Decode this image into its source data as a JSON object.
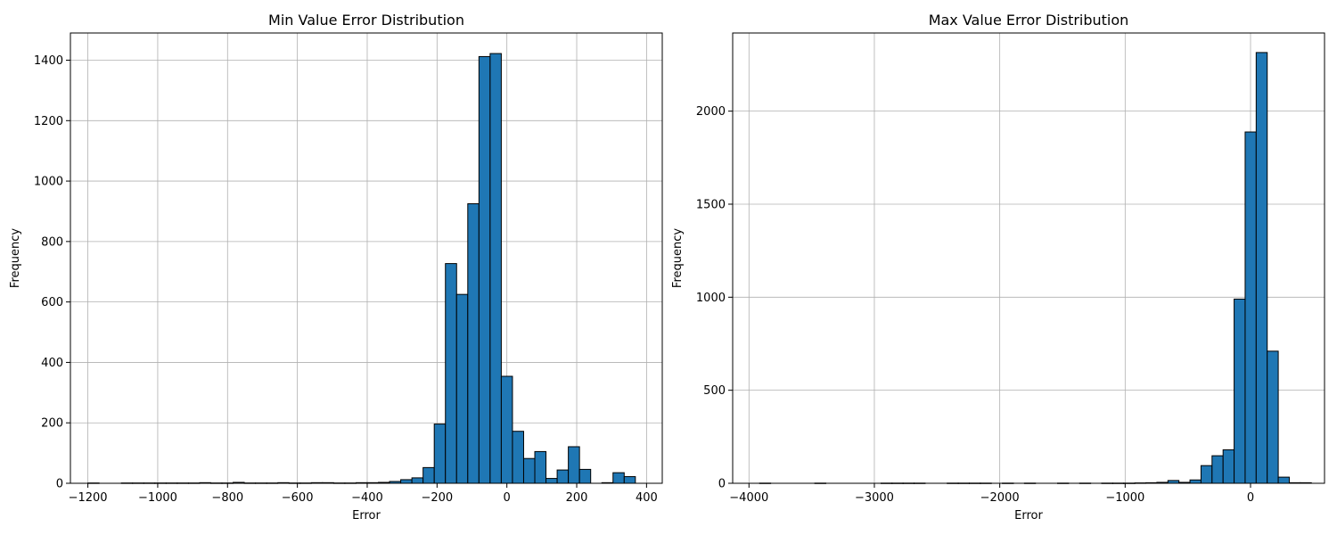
{
  "chart_data": [
    {
      "type": "bar",
      "title": "Min Value Error Distribution",
      "xlabel": "Error",
      "ylabel": "Frequency",
      "xlim": [
        -1250,
        445
      ],
      "ylim": [
        0,
        1490
      ],
      "xticks": [
        -1200,
        -1000,
        -800,
        -600,
        -400,
        -200,
        0,
        200,
        400
      ],
      "xtick_labels": [
        "−1200",
        "−1000",
        "−800",
        "−600",
        "−400",
        "−200",
        "0",
        "200",
        "400"
      ],
      "yticks": [
        0,
        200,
        400,
        600,
        800,
        1000,
        1200,
        1400
      ],
      "ytick_labels": [
        "0",
        "200",
        "400",
        "600",
        "800",
        "1000",
        "1200",
        "1400"
      ],
      "grid": true,
      "bin_start": -1200,
      "bin_width": 32,
      "values": [
        1,
        0,
        0,
        1,
        1,
        1,
        1,
        1,
        1,
        1,
        2,
        1,
        1,
        3,
        1,
        1,
        1,
        2,
        1,
        1,
        2,
        2,
        1,
        1,
        2,
        2,
        3,
        6,
        12,
        18,
        52,
        196,
        727,
        625,
        925,
        1412,
        1422,
        354,
        172,
        82,
        105,
        16,
        44,
        121,
        46,
        0,
        2,
        35,
        22
      ]
    },
    {
      "type": "bar",
      "title": "Max Value Error Distribution",
      "xlabel": "Error",
      "ylabel": "Frequency",
      "xlim": [
        -4130,
        590
      ],
      "ylim": [
        0,
        2420
      ],
      "xticks": [
        -4000,
        -3000,
        -2000,
        -1000,
        0
      ],
      "xtick_labels": [
        "−4000",
        "−3000",
        "−2000",
        "−1000",
        "0"
      ],
      "yticks": [
        0,
        500,
        1000,
        1500,
        2000
      ],
      "yticks_labels_note": "",
      "ytick_labels": [
        "0",
        "500",
        "1000",
        "1500",
        "2000"
      ],
      "grid": true,
      "bin_start": -3915,
      "bin_width": 88,
      "values": [
        1,
        0,
        0,
        0,
        0,
        1,
        0,
        0,
        0,
        0,
        0,
        1,
        1,
        1,
        1,
        0,
        0,
        1,
        1,
        1,
        1,
        0,
        1,
        0,
        1,
        0,
        0,
        1,
        0,
        1,
        0,
        1,
        1,
        1,
        2,
        3,
        5,
        15,
        5,
        18,
        95,
        148,
        180,
        990,
        1888,
        2315,
        710,
        33,
        3,
        3
      ]
    }
  ]
}
